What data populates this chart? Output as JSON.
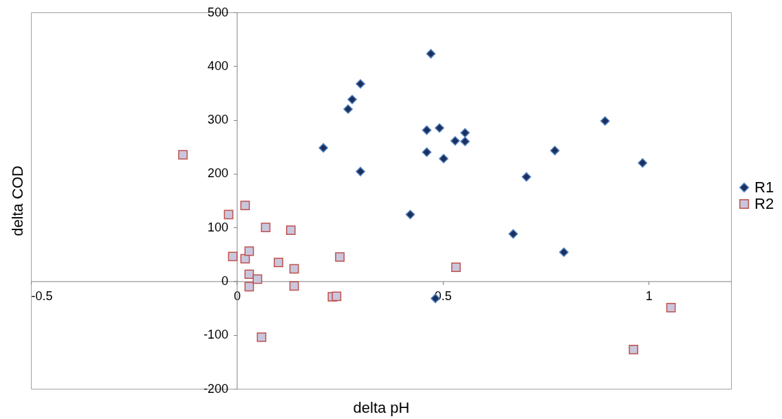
{
  "chart_data": {
    "type": "scatter",
    "xlabel": "delta pH",
    "ylabel": "delta COD",
    "xlim": [
      -0.5,
      1.2
    ],
    "xticks": [
      -0.5,
      0,
      0.5,
      1
    ],
    "ylim": [
      -200,
      500
    ],
    "yticks": [
      -200,
      -100,
      0,
      100,
      200,
      300,
      400,
      500
    ],
    "grid": false,
    "legend": "right",
    "series": [
      {
        "name": "R1",
        "color": "#1c2f5e",
        "marker": "diamond",
        "x": [
          0.471,
          0.3,
          0.28,
          0.27,
          0.21,
          0.3,
          0.461,
          0.492,
          0.461,
          0.502,
          0.53,
          0.554,
          0.554,
          0.421,
          0.482,
          0.671,
          0.703,
          0.772,
          0.794,
          0.894,
          0.985
        ],
        "values": [
          423,
          367,
          338,
          320,
          248,
          204,
          281,
          285,
          240,
          228,
          261,
          276,
          260,
          124,
          -32,
          88,
          194,
          243,
          54,
          298,
          220
        ]
      },
      {
        "name": "R2",
        "color": "#c9c6dd",
        "marker": "square",
        "x": [
          -0.131,
          -0.02,
          0.02,
          -0.01,
          0.02,
          0.03,
          0.03,
          0.03,
          0.05,
          0.07,
          0.101,
          0.131,
          0.139,
          0.139,
          0.25,
          0.232,
          0.242,
          0.06,
          0.532,
          0.963,
          1.054
        ],
        "values": [
          235,
          124,
          141,
          46,
          42,
          56,
          13,
          -10,
          4,
          100,
          35,
          95,
          23,
          -9,
          45,
          -29,
          -28,
          -104,
          26,
          -127,
          -49
        ]
      }
    ]
  }
}
